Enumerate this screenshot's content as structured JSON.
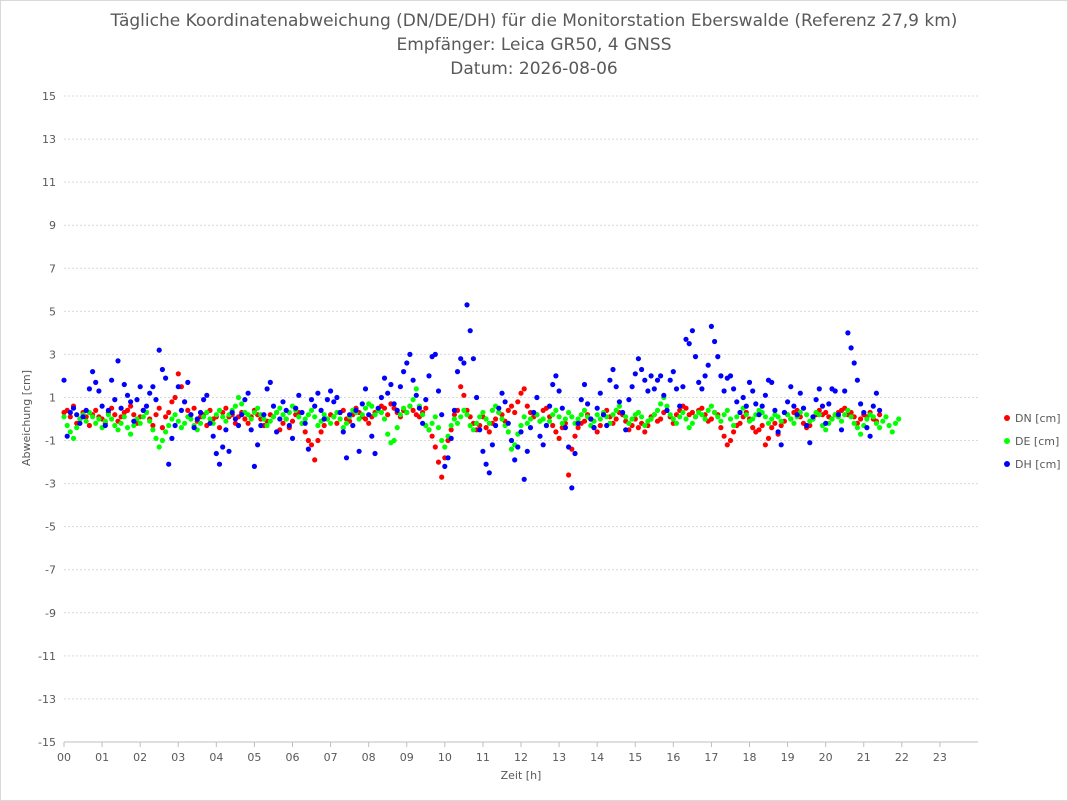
{
  "chart_data": {
    "type": "scatter",
    "title_lines": [
      "Tägliche Koordinatenabweichung (DN/DE/DH) für die Monitorstation Eberswalde (Referenz 27,9 km)",
      "Empfänger: Leica GR50, 4 GNSS",
      "Datum: 2026-08-06"
    ],
    "xlabel": "Zeit [h]",
    "ylabel": "Abweichung [cm]",
    "xlim": [
      0,
      24
    ],
    "ylim": [
      -15,
      15
    ],
    "x_ticks": [
      "00",
      "01",
      "02",
      "03",
      "04",
      "05",
      "06",
      "07",
      "08",
      "09",
      "10",
      "11",
      "12",
      "13",
      "14",
      "15",
      "16",
      "17",
      "18",
      "19",
      "20",
      "21",
      "22",
      "23"
    ],
    "y_ticks": [
      15,
      13,
      11,
      9,
      7,
      5,
      3,
      1,
      -1,
      -3,
      -5,
      -7,
      -9,
      -11,
      -13,
      -15
    ],
    "y_tick_labels": [
      "15",
      "13",
      "11",
      "9",
      "7",
      "5",
      "3",
      "1",
      "-1",
      "-3",
      "-5",
      "-7",
      "-9",
      "-11",
      "-13",
      "-15"
    ],
    "grid": true,
    "legend_position": "right",
    "interval_minutes": 5,
    "series": [
      {
        "name": "DN [cm]",
        "color": "#ff0000",
        "values": [
          0.3,
          0.4,
          0.1,
          0.6,
          -0.2,
          0.0,
          0.3,
          0.1,
          -0.3,
          0.2,
          0.4,
          0.1,
          0.0,
          -0.2,
          0.3,
          0.5,
          0.2,
          -0.1,
          0.1,
          0.3,
          0.4,
          0.6,
          0.2,
          -0.2,
          0.1,
          0.4,
          0.3,
          0.0,
          -0.3,
          0.2,
          0.5,
          -0.4,
          0.1,
          0.3,
          0.8,
          1.0,
          2.1,
          1.5,
          0.8,
          0.4,
          0.2,
          0.5,
          -0.1,
          0.1,
          0.2,
          -0.3,
          0.4,
          0.0,
          0.1,
          -0.4,
          0.3,
          0.5,
          0.1,
          0.2,
          -0.2,
          0.1,
          0.3,
          0.0,
          -0.2,
          0.1,
          0.4,
          0.2,
          0.0,
          -0.3,
          -0.1,
          0.2,
          0.1,
          0.3,
          -0.5,
          -0.2,
          0.0,
          -0.4,
          -0.1,
          0.2,
          0.3,
          -0.2,
          -0.6,
          -1.0,
          -1.2,
          -1.9,
          -1.0,
          -0.6,
          -0.3,
          0.0,
          0.2,
          0.1,
          -0.2,
          0.3,
          0.4,
          0.0,
          -0.1,
          0.2,
          0.5,
          0.3,
          0.1,
          0.0,
          -0.2,
          0.1,
          0.3,
          0.4,
          0.6,
          0.5,
          0.2,
          0.7,
          0.5,
          0.3,
          0.1,
          0.4,
          0.3,
          0.6,
          0.4,
          0.2,
          0.1,
          0.3,
          0.5,
          -0.5,
          -0.8,
          -1.3,
          -2.0,
          -2.7,
          -1.8,
          -1.0,
          -0.5,
          0.2,
          0.4,
          1.5,
          1.1,
          0.4,
          0.1,
          -0.2,
          -0.5,
          -0.3,
          0.1,
          -0.4,
          -0.6,
          -0.2,
          0.0,
          0.3,
          0.2,
          -0.1,
          0.4,
          0.6,
          0.3,
          0.8,
          1.2,
          1.4,
          0.6,
          0.3,
          0.1,
          0.2,
          -0.1,
          0.4,
          0.5,
          0.1,
          -0.3,
          -0.6,
          -0.9,
          -0.4,
          -0.2,
          -2.6,
          -1.4,
          -0.8,
          -0.4,
          -0.2,
          -0.1,
          0.2,
          0.0,
          -0.4,
          -0.6,
          -0.3,
          0.2,
          0.4,
          0.1,
          -0.2,
          0.0,
          0.3,
          0.2,
          -0.1,
          -0.5,
          -0.3,
          0.0,
          -0.4,
          -0.2,
          -0.6,
          -0.3,
          0.1,
          0.2,
          -0.1,
          0.0,
          0.3,
          0.4,
          0.1,
          -0.2,
          0.2,
          0.4,
          0.6,
          0.5,
          0.2,
          0.3,
          0.1,
          0.4,
          0.5,
          0.2,
          -0.1,
          0.0,
          0.3,
          0.2,
          -0.4,
          -0.8,
          -1.2,
          -1.0,
          -0.6,
          -0.3,
          -0.2,
          0.1,
          0.3,
          0.0,
          -0.4,
          -0.6,
          -0.5,
          -0.3,
          -1.2,
          -0.9,
          -0.4,
          -0.2,
          -0.7,
          -0.3,
          -0.1,
          0.2,
          0.0,
          0.3,
          0.4,
          0.1,
          -0.2,
          -0.4,
          -0.3,
          0.0,
          0.2,
          0.4,
          0.2,
          0.3,
          0.1,
          0.0,
          0.2,
          0.3,
          0.4,
          0.5,
          0.2,
          0.3,
          0.1,
          -0.2,
          0.0,
          0.2,
          0.1,
          0.3,
          0.0,
          -0.1,
          0.2
        ]
      },
      {
        "name": "DE [cm]",
        "color": "#00ff00",
        "values": [
          0.1,
          -0.3,
          -0.6,
          -0.9,
          -0.4,
          0.0,
          0.2,
          -0.1,
          0.3,
          0.1,
          -0.2,
          0.0,
          -0.4,
          -0.1,
          0.2,
          0.0,
          -0.3,
          -0.5,
          -0.2,
          0.1,
          -0.4,
          -0.7,
          -0.3,
          0.0,
          -0.2,
          0.1,
          0.3,
          -0.1,
          -0.5,
          -0.9,
          -1.3,
          -1.0,
          -0.6,
          -0.3,
          0.0,
          0.2,
          -0.1,
          -0.4,
          -0.2,
          0.1,
          0.0,
          -0.3,
          -0.5,
          -0.2,
          0.1,
          0.3,
          0.0,
          -0.2,
          0.2,
          0.4,
          0.1,
          -0.1,
          0.2,
          0.4,
          0.6,
          1.0,
          0.7,
          0.3,
          0.2,
          0.0,
          0.3,
          0.5,
          0.2,
          0.0,
          -0.3,
          -0.1,
          0.1,
          0.3,
          0.5,
          0.2,
          0.0,
          0.3,
          0.6,
          0.4,
          0.1,
          -0.2,
          0.0,
          0.2,
          0.4,
          0.1,
          -0.3,
          -0.1,
          0.2,
          0.0,
          -0.2,
          0.1,
          0.3,
          0.0,
          -0.4,
          -0.2,
          0.1,
          0.4,
          0.3,
          0.0,
          0.2,
          0.5,
          0.7,
          0.6,
          0.2,
          0.4,
          0.3,
          0.0,
          -0.7,
          -1.1,
          -1.0,
          -0.4,
          0.2,
          0.5,
          0.3,
          0.6,
          0.9,
          1.4,
          0.6,
          0.2,
          -0.3,
          -0.5,
          -0.2,
          0.1,
          -0.4,
          -1.0,
          -1.3,
          -0.8,
          -0.3,
          0.0,
          -0.2,
          0.1,
          0.4,
          0.2,
          -0.3,
          -0.5,
          -0.2,
          0.1,
          0.3,
          0.0,
          -0.2,
          0.4,
          0.6,
          0.3,
          0.0,
          -0.3,
          -0.6,
          -1.4,
          -1.2,
          -0.7,
          -0.3,
          0.1,
          -0.2,
          0.0,
          0.3,
          0.2,
          -0.1,
          0.0,
          -0.3,
          -0.1,
          0.2,
          0.4,
          0.1,
          -0.2,
          0.0,
          0.3,
          0.1,
          -0.2,
          0.0,
          0.2,
          0.4,
          0.1,
          -0.3,
          -0.1,
          0.2,
          0.0,
          0.3,
          0.1,
          -0.2,
          0.2,
          0.4,
          0.6,
          0.3,
          0.1,
          -0.2,
          0.0,
          0.2,
          0.3,
          0.1,
          -0.3,
          -0.1,
          0.0,
          0.2,
          0.4,
          0.7,
          1.0,
          0.6,
          0.2,
          0.0,
          -0.2,
          0.1,
          0.3,
          0.0,
          -0.4,
          -0.2,
          0.1,
          0.3,
          0.2,
          0.0,
          0.4,
          0.6,
          0.3,
          0.1,
          -0.1,
          0.2,
          0.4,
          0.0,
          -0.3,
          0.1,
          0.3,
          0.5,
          0.2,
          -0.1,
          0.0,
          0.2,
          0.4,
          0.3,
          0.1,
          -0.2,
          0.0,
          0.2,
          0.1,
          -0.1,
          0.3,
          0.2,
          0.0,
          -0.2,
          0.1,
          0.3,
          0.5,
          0.2,
          -0.1,
          0.0,
          0.3,
          0.2,
          -0.3,
          -0.5,
          -0.2,
          0.0,
          0.2,
          0.1,
          -0.1,
          0.2,
          0.4,
          0.1,
          -0.2,
          -0.4,
          -0.7,
          -0.3,
          0.0,
          0.2,
          0.1,
          -0.2,
          -0.4,
          -0.1,
          0.1,
          -0.3,
          -0.6,
          -0.2,
          0.0
        ]
      },
      {
        "name": "DH [cm]",
        "color": "#0000ff",
        "values": [
          1.8,
          -0.8,
          0.3,
          0.5,
          0.2,
          -0.2,
          0.1,
          0.4,
          1.4,
          2.2,
          1.7,
          1.3,
          0.6,
          -0.3,
          0.4,
          1.8,
          0.9,
          2.7,
          0.5,
          1.6,
          1.1,
          0.8,
          -0.1,
          0.9,
          1.5,
          0.4,
          0.6,
          1.2,
          1.5,
          0.9,
          3.2,
          2.3,
          1.9,
          -2.1,
          -0.9,
          -0.3,
          1.5,
          0.4,
          0.8,
          1.7,
          0.2,
          -0.4,
          0.0,
          0.3,
          0.9,
          1.1,
          -0.2,
          -0.8,
          -1.6,
          -2.1,
          -1.3,
          -0.5,
          -1.5,
          0.3,
          0.0,
          -0.3,
          0.2,
          0.9,
          1.2,
          -0.5,
          -2.2,
          -1.2,
          -0.3,
          0.2,
          1.4,
          1.7,
          0.6,
          -0.6,
          0.0,
          0.8,
          0.4,
          -0.3,
          -0.9,
          0.5,
          1.1,
          0.3,
          -0.2,
          -1.4,
          0.9,
          0.6,
          1.2,
          0.4,
          0.0,
          0.9,
          1.3,
          0.8,
          1.0,
          0.3,
          -0.6,
          -1.8,
          0.2,
          -0.3,
          0.4,
          -1.5,
          0.7,
          1.4,
          0.2,
          -0.8,
          -1.6,
          0.5,
          1.0,
          1.9,
          1.2,
          1.6,
          0.7,
          0.4,
          1.5,
          2.2,
          2.6,
          3.0,
          1.8,
          1.1,
          0.5,
          -0.2,
          0.9,
          2.0,
          2.9,
          3.0,
          1.3,
          0.2,
          -2.2,
          -1.8,
          -0.9,
          0.4,
          2.2,
          2.8,
          2.6,
          5.3,
          4.1,
          2.8,
          1.0,
          -0.5,
          -1.5,
          -2.1,
          -2.5,
          -1.2,
          -0.3,
          0.5,
          1.2,
          0.8,
          -0.2,
          -1.0,
          -1.9,
          -1.3,
          -0.6,
          -2.8,
          -1.5,
          -0.4,
          0.3,
          1.0,
          -0.8,
          -1.2,
          -0.3,
          0.6,
          1.6,
          2.0,
          1.3,
          0.5,
          -0.4,
          -1.3,
          -3.2,
          -1.6,
          -0.2,
          0.9,
          1.6,
          0.7,
          0.0,
          -0.4,
          0.5,
          1.2,
          0.2,
          -0.3,
          1.8,
          2.3,
          1.5,
          0.8,
          0.3,
          -0.5,
          0.9,
          1.5,
          2.1,
          2.8,
          2.3,
          1.8,
          1.3,
          2.0,
          1.4,
          1.8,
          2.0,
          1.1,
          0.4,
          1.8,
          2.2,
          1.4,
          0.6,
          1.5,
          3.7,
          3.5,
          4.1,
          2.9,
          1.7,
          1.4,
          2.0,
          2.5,
          4.3,
          3.6,
          2.9,
          2.0,
          1.3,
          1.9,
          2.0,
          1.4,
          0.8,
          0.3,
          1.0,
          0.6,
          1.7,
          1.3,
          0.7,
          0.2,
          0.6,
          1.1,
          1.8,
          1.7,
          0.4,
          -0.6,
          -1.2,
          0.3,
          0.8,
          1.5,
          0.6,
          0.2,
          1.2,
          0.5,
          -0.3,
          -1.1,
          0.1,
          0.9,
          1.4,
          0.6,
          -0.2,
          0.7,
          1.4,
          1.3,
          0.2,
          -0.5,
          1.3,
          4.0,
          3.3,
          2.6,
          1.8,
          0.7,
          0.3,
          -0.4,
          -0.8,
          0.6,
          1.2,
          0.4
        ]
      }
    ]
  }
}
